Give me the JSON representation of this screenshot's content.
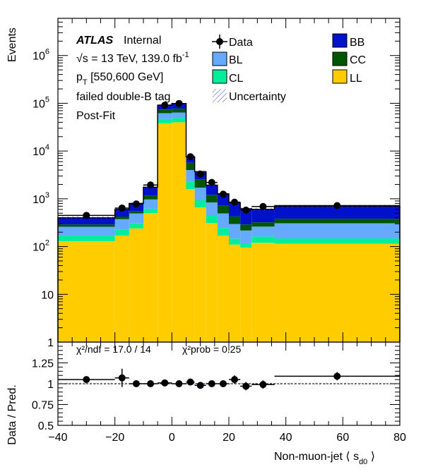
{
  "chart_data": [
    {
      "type": "stacked-histogram",
      "scale": "log",
      "ylabel": "Events",
      "ylim": [
        1,
        6000000
      ],
      "xlim": [
        -40,
        80
      ],
      "yticks": [
        {
          "value": 1,
          "base": "1",
          "exp": ""
        },
        {
          "value": 10,
          "base": "10",
          "exp": ""
        },
        {
          "value": 100,
          "base": "10",
          "exp": "2"
        },
        {
          "value": 1000,
          "base": "10",
          "exp": "3"
        },
        {
          "value": 10000,
          "base": "10",
          "exp": "4"
        },
        {
          "value": 100000,
          "base": "10",
          "exp": "5"
        },
        {
          "value": 1000000,
          "base": "10",
          "exp": "6"
        }
      ],
      "annotation": {
        "atlas": "ATLAS",
        "internal": "Internal",
        "energy": "√s = 13 TeV, 139.0 fb",
        "energy_sup": "-1",
        "pt_p": "p",
        "pt_sub": "T",
        "pt_range": " [550,600 GeV]",
        "tag": "failed double-B tag",
        "fit": "Post-Fit"
      },
      "legend": {
        "data": "Data",
        "bl": "BL",
        "cl": "CL",
        "unc": "Uncertainty",
        "bb": "BB",
        "cc": "CC",
        "ll": "LL"
      },
      "colors": {
        "LL": "#ffcc00",
        "CL": "#00ee99",
        "BL": "#66aaff",
        "CC": "#005500",
        "BB": "#0011cc"
      },
      "bin_edges": [
        -40,
        -20,
        -15,
        -10,
        -5,
        0,
        5,
        8,
        12,
        16,
        20,
        24,
        28,
        36,
        80
      ],
      "series": [
        {
          "name": "LL",
          "values": [
            130,
            170,
            240,
            500,
            38000,
            40000,
            1600,
            660,
            310,
            170,
            110,
            95,
            120,
            115
          ]
        },
        {
          "name": "CL",
          "values": [
            40,
            55,
            65,
            120,
            9000,
            9000,
            700,
            270,
            130,
            75,
            37,
            22,
            42,
            33
          ]
        },
        {
          "name": "BL",
          "values": [
            90,
            150,
            190,
            350,
            15000,
            15000,
            1700,
            780,
            400,
            250,
            150,
            100,
            100,
            160
          ]
        },
        {
          "name": "CC",
          "values": [
            30,
            50,
            60,
            200,
            12000,
            13000,
            1700,
            840,
            370,
            220,
            130,
            73,
            60,
            72
          ]
        },
        {
          "name": "BB",
          "values": [
            110,
            175,
            245,
            580,
            17000,
            22000,
            1900,
            1150,
            720,
            560,
            400,
            330,
            280,
            320
          ]
        }
      ],
      "data_points": [
        {
          "x": -30,
          "y": 450
        },
        {
          "x": -17.5,
          "y": 640
        },
        {
          "x": -12.5,
          "y": 780
        },
        {
          "x": -7.5,
          "y": 1950
        },
        {
          "x": -2.5,
          "y": 91000
        },
        {
          "x": 2.5,
          "y": 99000
        },
        {
          "x": 6.5,
          "y": 7600
        },
        {
          "x": 10,
          "y": 3300
        },
        {
          "x": 14,
          "y": 2200
        },
        {
          "x": 18,
          "y": 1250
        },
        {
          "x": 22,
          "y": 850
        },
        {
          "x": 26,
          "y": 580
        },
        {
          "x": 32,
          "y": 690
        },
        {
          "x": 58,
          "y": 720
        }
      ]
    },
    {
      "type": "ratio",
      "ylabel": "Data / Pred.",
      "xlabel": "Non-muon-jet  ⟨ s",
      "xlabel_sub": "d0",
      "xlabel_end": " ⟩",
      "xlim": [
        -40,
        80
      ],
      "ylim": [
        0.5,
        1.5
      ],
      "yticks": [
        "0.5",
        "0.75",
        "1",
        "1.25"
      ],
      "xticks": [
        "−40",
        "−20",
        "0",
        "20",
        "40",
        "60",
        "80"
      ],
      "chi2_text": "χ²/ndf = 17.0 / 14",
      "prob_text": "χ²prob = 0.25",
      "points": [
        {
          "x": -30,
          "y": 1.05,
          "xerr": 10,
          "yerr": 0.03
        },
        {
          "x": -17.5,
          "y": 1.07,
          "xerr": 2.5,
          "yerr": 0.11
        },
        {
          "x": -12.5,
          "y": 1.0,
          "xerr": 2.5,
          "yerr": 0.04
        },
        {
          "x": -7.5,
          "y": 1.0,
          "xerr": 2.5,
          "yerr": 0.03
        },
        {
          "x": -2.5,
          "y": 1.01,
          "xerr": 2.5,
          "yerr": 0.01
        },
        {
          "x": 2.5,
          "y": 1.0,
          "xerr": 2.5,
          "yerr": 0.01
        },
        {
          "x": 6.5,
          "y": 1.02,
          "xerr": 1.5,
          "yerr": 0.02
        },
        {
          "x": 10,
          "y": 0.98,
          "xerr": 2,
          "yerr": 0.03
        },
        {
          "x": 14,
          "y": 1.0,
          "xerr": 2,
          "yerr": 0.03
        },
        {
          "x": 18,
          "y": 1.0,
          "xerr": 2,
          "yerr": 0.04
        },
        {
          "x": 22,
          "y": 1.05,
          "xerr": 2,
          "yerr": 0.05
        },
        {
          "x": 26,
          "y": 0.97,
          "xerr": 2,
          "yerr": 0.05
        },
        {
          "x": 32,
          "y": 0.99,
          "xerr": 4,
          "yerr": 0.05
        },
        {
          "x": 58,
          "y": 1.09,
          "xerr": 22,
          "yerr": 0.05
        }
      ]
    }
  ]
}
